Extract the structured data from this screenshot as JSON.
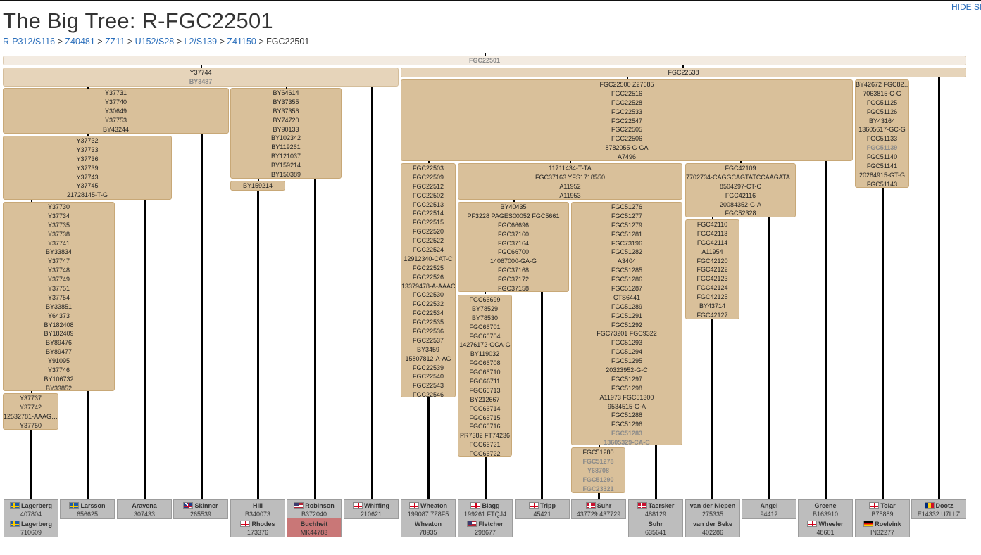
{
  "page": {
    "title": "The Big Tree: R-FGC22501",
    "hide_label": "HIDE SI"
  },
  "breadcrumb": {
    "links": [
      "R-P312/S116",
      "Z40481",
      "ZZ11",
      "U152/S28",
      "L2/S139",
      "Z41150"
    ],
    "current": "FGC22501",
    "separator": ">"
  },
  "colors": {
    "node": "#d9c09a",
    "root": "#f3ebe1",
    "level2": "#e6d4ba",
    "kit": "#bdbdbd",
    "highlight": "#c97777",
    "link": "#2a6ebb"
  },
  "nodes": [
    {
      "lines": [
        {
          "t": "FGC22501",
          "dim": true
        }
      ]
    },
    {
      "lines": [
        {
          "t": "Y37744"
        },
        {
          "t": "BY3487",
          "dim": true
        }
      ]
    },
    {
      "lines": [
        {
          "t": "FGC22538"
        }
      ]
    },
    {
      "lines": [
        {
          "t": "Y37731"
        },
        {
          "t": "Y37740"
        },
        {
          "t": "Y30649"
        },
        {
          "t": "Y37753"
        },
        {
          "t": "BY43244"
        }
      ]
    },
    {
      "lines": [
        {
          "t": "BY64614"
        },
        {
          "t": "BY37355"
        },
        {
          "t": "BY37356"
        },
        {
          "t": "BY74720"
        },
        {
          "t": "BY90133"
        },
        {
          "t": "BY102342"
        },
        {
          "t": "BY119261"
        },
        {
          "t": "BY121037"
        },
        {
          "t": "BY159214"
        },
        {
          "t": "BY150389"
        }
      ]
    },
    {
      "lines": [
        {
          "t": "FGC22500 Z27685"
        },
        {
          "t": "FGC22516"
        },
        {
          "t": "FGC22528"
        },
        {
          "t": "FGC22533"
        },
        {
          "t": "FGC22547"
        },
        {
          "t": "FGC22505"
        },
        {
          "t": "FGC22506"
        },
        {
          "t": "8782055-G-GA"
        },
        {
          "t": "A7496"
        }
      ]
    },
    {
      "lines": [
        {
          "t": "BY42672 FGC82…"
        },
        {
          "t": "7063815-C-G"
        },
        {
          "t": "FGC51125"
        },
        {
          "t": "FGC51126"
        },
        {
          "t": "BY43164"
        },
        {
          "t": "13605617-GC-G"
        },
        {
          "t": "FGC51133"
        },
        {
          "t": "FGC51139",
          "dim": true
        },
        {
          "t": "FGC51140"
        },
        {
          "t": "FGC51141"
        },
        {
          "t": "20284915-GT-G"
        },
        {
          "t": "FGC51143"
        }
      ]
    },
    {
      "lines": [
        {
          "t": "Y37732"
        },
        {
          "t": "Y37733"
        },
        {
          "t": "Y37736"
        },
        {
          "t": "Y37739"
        },
        {
          "t": "Y37743"
        },
        {
          "t": "Y37745"
        },
        {
          "t": "21728145-T-G"
        }
      ]
    },
    {
      "lines": [
        {
          "t": "BY159214"
        }
      ]
    },
    {
      "lines": [
        {
          "t": "Y37730"
        },
        {
          "t": "Y37734"
        },
        {
          "t": "Y37735"
        },
        {
          "t": "Y37738"
        },
        {
          "t": "Y37741"
        },
        {
          "t": "BY33834"
        },
        {
          "t": "Y37747"
        },
        {
          "t": "Y37748"
        },
        {
          "t": "Y37749"
        },
        {
          "t": "Y37751"
        },
        {
          "t": "Y37754"
        },
        {
          "t": "BY33851"
        },
        {
          "t": "Y64373"
        },
        {
          "t": "BY182408"
        },
        {
          "t": "BY182409"
        },
        {
          "t": "BY89476"
        },
        {
          "t": "BY89477"
        },
        {
          "t": "Y91095"
        },
        {
          "t": "Y37746"
        },
        {
          "t": "BY106732"
        },
        {
          "t": "BY33852"
        }
      ]
    },
    {
      "lines": [
        {
          "t": "Y37737"
        },
        {
          "t": "Y37742"
        },
        {
          "t": "12532781-AAAG…"
        },
        {
          "t": "Y37750"
        }
      ]
    },
    {
      "lines": [
        {
          "t": "FGC22503"
        },
        {
          "t": "FGC22509"
        },
        {
          "t": "FGC22512"
        },
        {
          "t": "FGC22502"
        },
        {
          "t": "FGC22513"
        },
        {
          "t": "FGC22514"
        },
        {
          "t": "FGC22515"
        },
        {
          "t": "FGC22520"
        },
        {
          "t": "FGC22522"
        },
        {
          "t": "FGC22524"
        },
        {
          "t": "12912340-CAT-C"
        },
        {
          "t": "FGC22525"
        },
        {
          "t": "FGC22526"
        },
        {
          "t": "13379478-A-AAAC"
        },
        {
          "t": "FGC22530"
        },
        {
          "t": "FGC22532"
        },
        {
          "t": "FGC22534"
        },
        {
          "t": "FGC22535"
        },
        {
          "t": "FGC22536"
        },
        {
          "t": "FGC22537"
        },
        {
          "t": "BY3459"
        },
        {
          "t": "15807812-A-AG"
        },
        {
          "t": "FGC22539"
        },
        {
          "t": "FGC22540"
        },
        {
          "t": "FGC22543"
        },
        {
          "t": "FGC22546"
        }
      ]
    },
    {
      "lines": [
        {
          "t": "11711434-T-TA"
        },
        {
          "t": "FGC37163 YFS1718550"
        },
        {
          "t": "A11952"
        },
        {
          "t": "A11953"
        }
      ]
    },
    {
      "lines": [
        {
          "t": "FGC42109"
        },
        {
          "t": "7702734-CAGGCAGTATCCAAGATA…"
        },
        {
          "t": "8504297-CT-C"
        },
        {
          "t": "FGC42116"
        },
        {
          "t": "20084352-G-A"
        },
        {
          "t": "FGC52328"
        }
      ]
    },
    {
      "lines": [
        {
          "t": "BY40435"
        },
        {
          "t": "PF3228 PAGES00052 FGC5661"
        },
        {
          "t": "FGC66696"
        },
        {
          "t": "FGC37160"
        },
        {
          "t": "FGC37164"
        },
        {
          "t": "FGC66700"
        },
        {
          "t": "14067000-GA-G"
        },
        {
          "t": "FGC37168"
        },
        {
          "t": "FGC37172"
        },
        {
          "t": "FGC37158"
        }
      ]
    },
    {
      "lines": [
        {
          "t": "FGC51276"
        },
        {
          "t": "FGC51277"
        },
        {
          "t": "FGC51279"
        },
        {
          "t": "FGC51281"
        },
        {
          "t": "FGC73196"
        },
        {
          "t": "FGC51282"
        },
        {
          "t": "A3404"
        },
        {
          "t": "FGC51285"
        },
        {
          "t": "FGC51286"
        },
        {
          "t": "FGC51287"
        },
        {
          "t": "CTS6441"
        },
        {
          "t": "FGC51289"
        },
        {
          "t": "FGC51291"
        },
        {
          "t": "FGC51292"
        },
        {
          "t": "FGC73201 FGC9322"
        },
        {
          "t": "FGC51293"
        },
        {
          "t": "FGC51294"
        },
        {
          "t": "FGC51295"
        },
        {
          "t": "20323952-G-C"
        },
        {
          "t": "FGC51297"
        },
        {
          "t": "FGC51298"
        },
        {
          "t": "A11973 FGC51300"
        },
        {
          "t": "9534515-G-A"
        },
        {
          "t": "FGC51288"
        },
        {
          "t": "FGC51296"
        },
        {
          "t": "FGC51283",
          "dim": true
        },
        {
          "t": "13605329-CA-C",
          "dim": true
        }
      ]
    },
    {
      "lines": [
        {
          "t": "FGC42110"
        },
        {
          "t": "FGC42113"
        },
        {
          "t": "FGC42114"
        },
        {
          "t": "A11954"
        },
        {
          "t": "FGC42120"
        },
        {
          "t": "FGC42122"
        },
        {
          "t": "FGC42123"
        },
        {
          "t": "FGC42124"
        },
        {
          "t": "FGC42125"
        },
        {
          "t": "BY43714"
        },
        {
          "t": "FGC42127"
        }
      ]
    },
    {
      "lines": [
        {
          "t": "FGC66699"
        },
        {
          "t": "BY78529"
        },
        {
          "t": "BY78530"
        },
        {
          "t": "FGC66701"
        },
        {
          "t": "FGC66704"
        },
        {
          "t": "14276172-GCA-G"
        },
        {
          "t": "BY119032"
        },
        {
          "t": "FGC66708"
        },
        {
          "t": "FGC66710"
        },
        {
          "t": "FGC66711"
        },
        {
          "t": "FGC66713"
        },
        {
          "t": "BY212667"
        },
        {
          "t": "FGC66714"
        },
        {
          "t": "FGC66715"
        },
        {
          "t": "FGC66716"
        },
        {
          "t": "PR7382 FT74236"
        },
        {
          "t": "FGC66721"
        },
        {
          "t": "FGC66722"
        }
      ]
    },
    {
      "lines": [
        {
          "t": "FGC51280"
        },
        {
          "t": "FGC51278",
          "dim": true
        },
        {
          "t": "Y68708",
          "dim": true
        },
        {
          "t": "FGC51290",
          "dim": true
        },
        {
          "t": "FGC23321",
          "dim": true
        }
      ]
    }
  ],
  "kits": [
    [
      {
        "name": "Lagerberg",
        "kit": "407804",
        "flag": "se"
      },
      {
        "name": "Lagerberg",
        "kit": "710609",
        "flag": "se"
      }
    ],
    [
      {
        "name": "Larsson",
        "kit": "656625",
        "flag": "se"
      }
    ],
    [
      {
        "name": "Aravena",
        "kit": "307433"
      }
    ],
    [
      {
        "name": "Skinner",
        "kit": "265539",
        "flag": "gb"
      }
    ],
    [
      {
        "name": "Hill",
        "kit": "B340073"
      },
      {
        "name": "Rhodes",
        "kit": "173376",
        "flag": "en"
      }
    ],
    [
      {
        "name": "Robinson",
        "kit": "B372040",
        "flag": "us"
      },
      {
        "name": "Buchheit",
        "kit": "MK44783",
        "highlight": true
      }
    ],
    [
      {
        "name": "Whiffing",
        "kit": "210621",
        "flag": "en"
      }
    ],
    [
      {
        "name": "Wheaton",
        "kit": "199087 7Z8F5",
        "flag": "en"
      },
      {
        "name": "Wheaton",
        "kit": "78935"
      }
    ],
    [
      {
        "name": "Blagg",
        "kit": "199261 FTQJ4",
        "flag": "en"
      },
      {
        "name": "Fletcher",
        "kit": "298677",
        "flag": "us"
      }
    ],
    [
      {
        "name": "Tripp",
        "kit": "45421",
        "flag": "en"
      }
    ],
    [
      {
        "name": "Suhr",
        "kit": "437729 437729",
        "flag": "dk"
      }
    ],
    [
      {
        "name": "Taersker",
        "kit": "488129",
        "flag": "dk"
      },
      {
        "name": "Suhr",
        "kit": "635641"
      }
    ],
    [
      {
        "name": "van der Niepen",
        "kit": "275335"
      },
      {
        "name": "van der Beke",
        "kit": "402286"
      }
    ],
    [
      {
        "name": "Angel",
        "kit": "94412"
      }
    ],
    [
      {
        "name": "Greene",
        "kit": "B163910"
      },
      {
        "name": "Wheeler",
        "kit": "48601",
        "flag": "en"
      }
    ],
    [
      {
        "name": "Tolar",
        "kit": "B75889",
        "flag": "en"
      },
      {
        "name": "Roelvink",
        "kit": "IN32277",
        "flag": "de"
      }
    ],
    [
      {
        "name": "Dootz",
        "kit": "E14332 U7LLZ",
        "flag": "ro"
      }
    ]
  ]
}
